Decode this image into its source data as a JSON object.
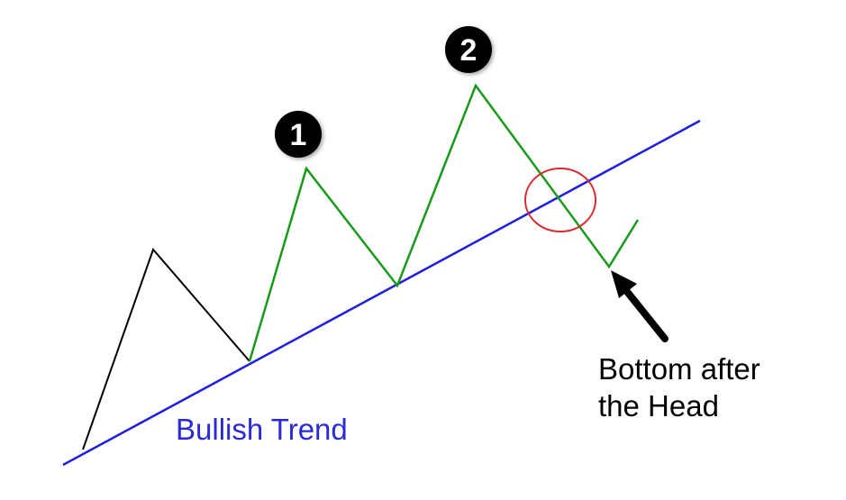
{
  "labels": {
    "trend": "Bullish Trend",
    "annotation_line1": "Bottom after",
    "annotation_line2": "the Head",
    "peak1": "1",
    "peak2": "2"
  },
  "colors": {
    "background": "#ffffff",
    "trendline": "#1f1fe0",
    "early_path": "#000000",
    "pattern_path": "#1a9a1a",
    "highlight_circle": "#d92b2b",
    "badge_fill": "#000000",
    "badge_text": "#ffffff",
    "trend_label": "#2a2ad8",
    "annotation_text": "#000000",
    "arrow": "#000000"
  }
}
